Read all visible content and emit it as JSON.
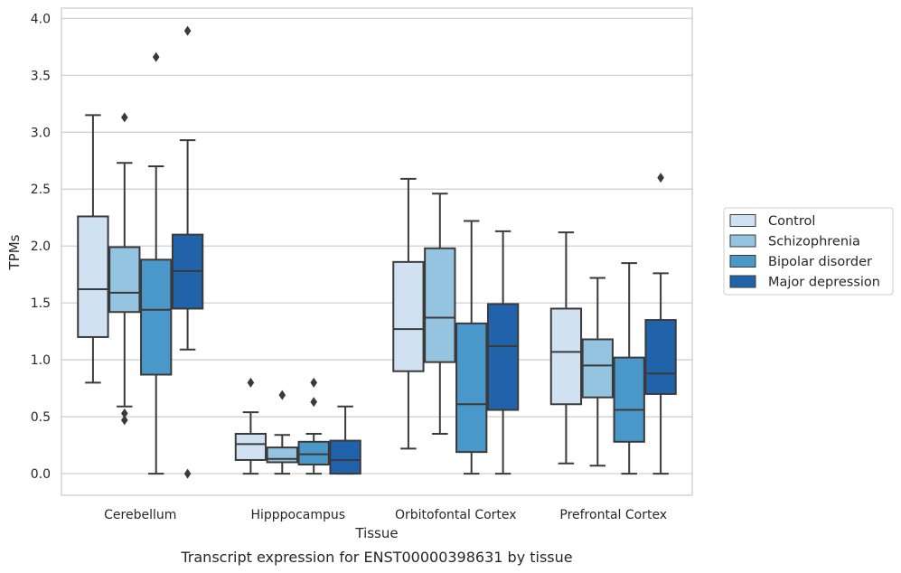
{
  "chart_data": {
    "type": "box",
    "xlabel": "Tissue",
    "ylabel": "TPMs",
    "caption": "Transcript expression for ENST00000398631 by tissue",
    "ylim": [
      -0.19,
      4.09
    ],
    "yticks": [
      "0.0",
      "0.5",
      "1.0",
      "1.5",
      "2.0",
      "2.5",
      "3.0",
      "3.5",
      "4.0"
    ],
    "grid": "horizontal",
    "legend_position": "right",
    "categories": [
      "Cerebellum",
      "Hipppocampus",
      "Orbitofontal Cortex",
      "Prefrontal Cortex"
    ],
    "series": [
      {
        "name": "Control",
        "color": "#d0e1f2",
        "boxes": [
          {
            "whislo": 0.8,
            "q1": 1.2,
            "med": 1.62,
            "q3": 2.26,
            "whishi": 3.15,
            "fliers": []
          },
          {
            "whislo": 0.0,
            "q1": 0.12,
            "med": 0.26,
            "q3": 0.35,
            "whishi": 0.54,
            "fliers": [
              0.8
            ]
          },
          {
            "whislo": 0.22,
            "q1": 0.9,
            "med": 1.27,
            "q3": 1.86,
            "whishi": 2.59,
            "fliers": []
          },
          {
            "whislo": 0.09,
            "q1": 0.61,
            "med": 1.07,
            "q3": 1.45,
            "whishi": 2.12,
            "fliers": []
          }
        ]
      },
      {
        "name": "Schizophrenia",
        "color": "#94c4df",
        "boxes": [
          {
            "whislo": 0.59,
            "q1": 1.42,
            "med": 1.59,
            "q3": 1.99,
            "whishi": 2.73,
            "fliers": [
              3.13,
              0.53,
              0.47
            ]
          },
          {
            "whislo": 0.0,
            "q1": 0.1,
            "med": 0.13,
            "q3": 0.23,
            "whishi": 0.34,
            "fliers": [
              0.69
            ]
          },
          {
            "whislo": 0.35,
            "q1": 0.98,
            "med": 1.37,
            "q3": 1.98,
            "whishi": 2.46,
            "fliers": []
          },
          {
            "whislo": 0.07,
            "q1": 0.67,
            "med": 0.95,
            "q3": 1.18,
            "whishi": 1.72,
            "fliers": []
          }
        ]
      },
      {
        "name": "Bipolar disorder",
        "color": "#4a98c9",
        "boxes": [
          {
            "whislo": 0.0,
            "q1": 0.87,
            "med": 1.44,
            "q3": 1.88,
            "whishi": 2.7,
            "fliers": [
              3.66
            ]
          },
          {
            "whislo": 0.0,
            "q1": 0.08,
            "med": 0.17,
            "q3": 0.28,
            "whishi": 0.35,
            "fliers": [
              0.8,
              0.63
            ]
          },
          {
            "whislo": 0.0,
            "q1": 0.19,
            "med": 0.61,
            "q3": 1.32,
            "whishi": 2.22,
            "fliers": []
          },
          {
            "whislo": 0.0,
            "q1": 0.28,
            "med": 0.56,
            "q3": 1.02,
            "whishi": 1.85,
            "fliers": []
          }
        ]
      },
      {
        "name": "Major depression",
        "color": "#2163aa",
        "boxes": [
          {
            "whislo": 1.09,
            "q1": 1.45,
            "med": 1.78,
            "q3": 2.1,
            "whishi": 2.93,
            "fliers": [
              3.89,
              0.0
            ]
          },
          {
            "whislo": 0.0,
            "q1": 0.0,
            "med": 0.12,
            "q3": 0.29,
            "whishi": 0.59,
            "fliers": []
          },
          {
            "whislo": 0.0,
            "q1": 0.56,
            "med": 1.12,
            "q3": 1.49,
            "whishi": 2.13,
            "fliers": []
          },
          {
            "whislo": 0.0,
            "q1": 0.7,
            "med": 0.88,
            "q3": 1.35,
            "whishi": 1.76,
            "fliers": [
              2.6
            ]
          }
        ]
      }
    ]
  }
}
